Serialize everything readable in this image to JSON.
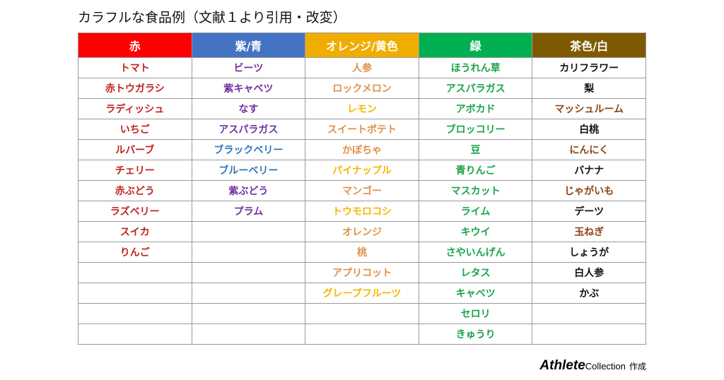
{
  "title": "カラフルな食品例（文献１より引用・改変）",
  "columns": [
    {
      "header": "赤",
      "header_color": "#ff0000",
      "text_color": "#c0221f",
      "items": [
        "トマト",
        "赤トウガラシ",
        "ラディッシュ",
        "いちご",
        "ルバーブ",
        "チェリー",
        "赤ぶどう",
        "ラズベリー",
        "スイカ",
        "りんご"
      ]
    },
    {
      "header": "紫/青",
      "header_color": "#4472c4",
      "text_color": "#7030a0",
      "alt_text_color": "#2e75b6",
      "alt_items": [
        4,
        5
      ],
      "items": [
        "ビーツ",
        "紫キャベツ",
        "なす",
        "アスパラガス",
        "ブラックベリー",
        "ブルーベリー",
        "紫ぶどう",
        "プラム"
      ]
    },
    {
      "header": "オレンジ/黄色",
      "header_color": "#f0ad00",
      "text_color": "#e0904a",
      "alt_text_color": "#f5b800",
      "alt_items": [
        2,
        5,
        7,
        11
      ],
      "items": [
        "人参",
        "ロックメロン",
        "レモン",
        "スイートポテト",
        "かぼちゃ",
        "パイナップル",
        "マンゴー",
        "トウモロコシ",
        "オレンジ",
        "桃",
        "アプリコット",
        "グレープフルーツ"
      ]
    },
    {
      "header": "緑",
      "header_color": "#00b050",
      "text_color": "#1aa34a",
      "items": [
        "ほうれん草",
        "アスパラガス",
        "アボカド",
        "ブロッコリー",
        "豆",
        "青りんご",
        "マスカット",
        "ライム",
        "キウイ",
        "さやいんげん",
        "レタス",
        "キャベツ",
        "セロリ",
        "きゅうり"
      ]
    },
    {
      "header": "茶色/白",
      "header_color": "#7f5a00",
      "text_color": "#111111",
      "alt_text_color": "#8b4513",
      "alt_items": [
        2,
        4,
        6,
        8
      ],
      "items": [
        "カリフラワー",
        "梨",
        "マッシュルーム",
        "白桃",
        "にんにく",
        "バナナ",
        "じゃがいも",
        "デーツ",
        "玉ねぎ",
        "しょうが",
        "白人参",
        "かぶ"
      ]
    }
  ],
  "row_count": 14,
  "footer": {
    "brand_athlete": "Athlete",
    "brand_collection": "Collection",
    "suffix": "作成"
  }
}
